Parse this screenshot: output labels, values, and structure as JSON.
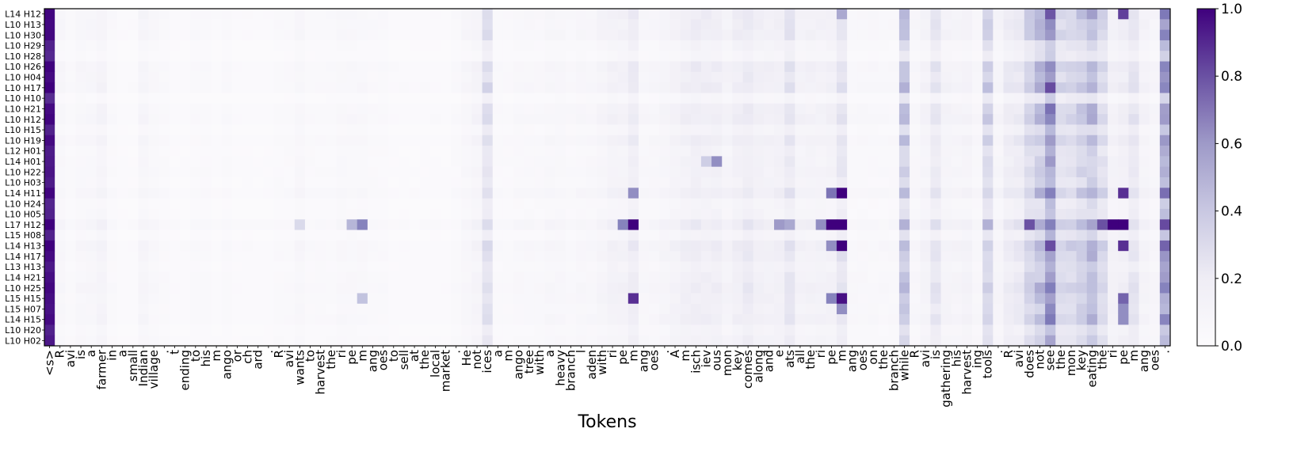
{
  "chart_data": {
    "type": "heatmap",
    "xlabel": "Tokens",
    "ylabel": "",
    "colormap": "Purples",
    "color_low": "#fcfbfd",
    "color_high": "#3f007d",
    "colorbar": {
      "min": 0.0,
      "max": 1.0,
      "ticks": [
        "0.0",
        "0.2",
        "0.4",
        "0.6",
        "0.8",
        "1.0"
      ]
    },
    "rows": [
      "L14 H12",
      "L10 H13",
      "L10 H30",
      "L10 H29",
      "L10 H28",
      "L10 H26",
      "L10 H04",
      "L10 H17",
      "L10 H10",
      "L10 H21",
      "L10 H12",
      "L10 H15",
      "L10 H19",
      "L12 H01",
      "L14 H01",
      "L10 H22",
      "L10 H03",
      "L14 H11",
      "L10 H24",
      "L10 H05",
      "L17 H12",
      "L15 H08",
      "L14 H13",
      "L14 H17",
      "L13 H13",
      "L14 H21",
      "L10 H25",
      "L15 H15",
      "L15 H07",
      "L14 H15",
      "L10 H20",
      "L10 H02"
    ],
    "tokens": [
      "<s>",
      "R",
      "avi",
      "is",
      "a",
      "farmer",
      "in",
      "a",
      "small",
      "Indian",
      "village",
      ".",
      "t",
      "ending",
      "to",
      "his",
      "m",
      "ango",
      "or",
      "ch",
      "ard",
      ".",
      "R",
      "avi",
      "wants",
      "to",
      "harvest",
      "the",
      "ri",
      "pe",
      "m",
      "ang",
      "oes",
      "to",
      "sell",
      "at",
      "the",
      "local",
      "market",
      ".",
      "He",
      "not",
      "ices",
      "a",
      "m",
      "ango",
      "tree",
      "with",
      "a",
      "heavy",
      "branch",
      "l",
      "aden",
      "with",
      "ri",
      "pe",
      "m",
      "ang",
      "oes",
      ".",
      "A",
      "m",
      "isch",
      "iev",
      "ous",
      "mon",
      "key",
      "comes",
      "along",
      "and",
      "e",
      "ats",
      "all",
      "the",
      "ri",
      "pe",
      "m",
      "ang",
      "oes",
      "on",
      "the",
      "branch",
      "while",
      "R",
      "avi",
      "is",
      "gathering",
      "his",
      "harvest",
      "ing",
      "tools",
      ".",
      "R",
      "avi",
      "does",
      "not",
      "see",
      "the",
      "mon",
      "key",
      "eating",
      "the",
      "ri",
      "pe",
      "m",
      "ang",
      "oes",
      "."
    ],
    "column_base": [
      0.85,
      0.05,
      0.03,
      0.05,
      0.05,
      0.07,
      0.03,
      0.02,
      0.02,
      0.06,
      0.04,
      0.03,
      0.02,
      0.02,
      0.03,
      0.03,
      0.02,
      0.03,
      0.02,
      0.02,
      0.02,
      0.02,
      0.03,
      0.03,
      0.05,
      0.03,
      0.03,
      0.03,
      0.04,
      0.04,
      0.04,
      0.03,
      0.03,
      0.02,
      0.02,
      0.02,
      0.02,
      0.02,
      0.02,
      0.03,
      0.05,
      0.07,
      0.22,
      0.03,
      0.03,
      0.04,
      0.04,
      0.04,
      0.05,
      0.05,
      0.04,
      0.05,
      0.05,
      0.07,
      0.09,
      0.09,
      0.14,
      0.05,
      0.05,
      0.07,
      0.09,
      0.11,
      0.13,
      0.12,
      0.12,
      0.08,
      0.12,
      0.15,
      0.11,
      0.1,
      0.11,
      0.18,
      0.09,
      0.09,
      0.09,
      0.1,
      0.2,
      0.04,
      0.04,
      0.04,
      0.04,
      0.04,
      0.35,
      0.05,
      0.08,
      0.18,
      0.08,
      0.07,
      0.08,
      0.05,
      0.3,
      0.07,
      0.14,
      0.16,
      0.28,
      0.38,
      0.6,
      0.25,
      0.26,
      0.32,
      0.4,
      0.25,
      0.1,
      0.12,
      0.18,
      0.08,
      0.06,
      0.55
    ],
    "row_gain": [
      1.05,
      0.98,
      1.0,
      0.6,
      0.5,
      1.08,
      0.95,
      1.1,
      0.45,
      0.95,
      1.05,
      0.6,
      0.95,
      0.7,
      0.75,
      0.8,
      0.7,
      1.05,
      0.55,
      0.6,
      1.2,
      0.6,
      1.1,
      0.95,
      0.75,
      0.9,
      1.0,
      0.9,
      0.85,
      0.95,
      0.6,
      0.75
    ],
    "highlights": [
      {
        "row": 0,
        "col": 103,
        "value": 0.8
      },
      {
        "row": 0,
        "col": 101,
        "value": 0.3
      },
      {
        "row": 0,
        "col": 76,
        "value": 0.45
      },
      {
        "row": 14,
        "col": 64,
        "value": 0.55
      },
      {
        "row": 14,
        "col": 63,
        "value": 0.3
      },
      {
        "row": 17,
        "col": 76,
        "value": 1.0
      },
      {
        "row": 17,
        "col": 75,
        "value": 0.65
      },
      {
        "row": 17,
        "col": 103,
        "value": 0.85
      },
      {
        "row": 17,
        "col": 56,
        "value": 0.55
      },
      {
        "row": 20,
        "col": 56,
        "value": 1.0
      },
      {
        "row": 20,
        "col": 75,
        "value": 1.0
      },
      {
        "row": 20,
        "col": 76,
        "value": 1.0
      },
      {
        "row": 20,
        "col": 102,
        "value": 1.0
      },
      {
        "row": 20,
        "col": 103,
        "value": 1.0
      },
      {
        "row": 20,
        "col": 30,
        "value": 0.6
      },
      {
        "row": 20,
        "col": 29,
        "value": 0.4
      },
      {
        "row": 20,
        "col": 55,
        "value": 0.6
      },
      {
        "row": 20,
        "col": 94,
        "value": 0.75
      },
      {
        "row": 20,
        "col": 101,
        "value": 0.75
      },
      {
        "row": 20,
        "col": 70,
        "value": 0.5
      },
      {
        "row": 20,
        "col": 74,
        "value": 0.55
      },
      {
        "row": 20,
        "col": 71,
        "value": 0.45
      },
      {
        "row": 20,
        "col": 24,
        "value": 0.25
      },
      {
        "row": 22,
        "col": 76,
        "value": 1.0
      },
      {
        "row": 22,
        "col": 75,
        "value": 0.55
      },
      {
        "row": 22,
        "col": 103,
        "value": 0.85
      },
      {
        "row": 27,
        "col": 56,
        "value": 0.85
      },
      {
        "row": 27,
        "col": 76,
        "value": 0.95
      },
      {
        "row": 27,
        "col": 75,
        "value": 0.6
      },
      {
        "row": 27,
        "col": 103,
        "value": 0.7
      },
      {
        "row": 27,
        "col": 30,
        "value": 0.35
      },
      {
        "row": 28,
        "col": 76,
        "value": 0.55
      },
      {
        "row": 28,
        "col": 103,
        "value": 0.55
      },
      {
        "row": 29,
        "col": 103,
        "value": 0.55
      }
    ]
  }
}
